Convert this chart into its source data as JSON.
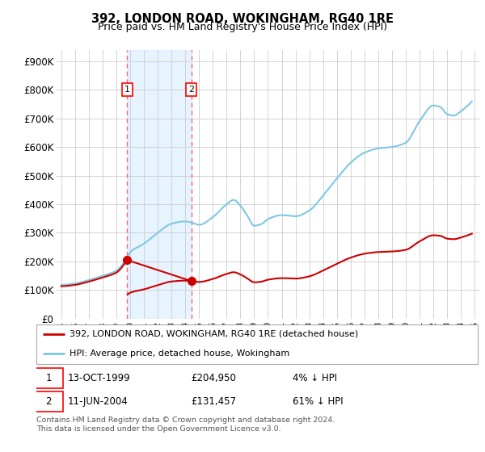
{
  "title": "392, LONDON ROAD, WOKINGHAM, RG40 1RE",
  "subtitle": "Price paid vs. HM Land Registry's House Price Index (HPI)",
  "footer": "Contains HM Land Registry data © Crown copyright and database right 2024.\nThis data is licensed under the Open Government Licence v3.0.",
  "legend_line1": "392, LONDON ROAD, WOKINGHAM, RG40 1RE (detached house)",
  "legend_line2": "HPI: Average price, detached house, Wokingham",
  "sale1_date": "13-OCT-1999",
  "sale1_price": "£204,950",
  "sale1_note": "4% ↓ HPI",
  "sale2_date": "11-JUN-2004",
  "sale2_price": "£131,457",
  "sale2_note": "61% ↓ HPI",
  "sale1_x": 1999.78,
  "sale1_y": 204950,
  "sale2_x": 2004.44,
  "sale2_y": 131457,
  "hpi_line_color": "#7ec8e3",
  "property_color": "#cc0000",
  "vline_color": "#ff6666",
  "grid_color": "#cccccc",
  "shade_color": "#ddeeff",
  "ylim": [
    0,
    940000
  ],
  "xlim": [
    1994.6,
    2025.4
  ],
  "yticks": [
    0,
    100000,
    200000,
    300000,
    400000,
    500000,
    600000,
    700000,
    800000,
    900000
  ],
  "ytick_labels": [
    "£0",
    "£100K",
    "£200K",
    "£300K",
    "£400K",
    "£500K",
    "£600K",
    "£700K",
    "£800K",
    "£900K"
  ],
  "xticks": [
    1995,
    1996,
    1997,
    1998,
    1999,
    2000,
    2001,
    2002,
    2003,
    2004,
    2005,
    2006,
    2007,
    2008,
    2009,
    2010,
    2011,
    2012,
    2013,
    2014,
    2015,
    2016,
    2017,
    2018,
    2019,
    2020,
    2021,
    2022,
    2023,
    2024,
    2025
  ],
  "hpi_knots_x": [
    1995,
    1996,
    1997,
    1998,
    1999,
    1999.78,
    2000,
    2001,
    2002,
    2003,
    2004,
    2004.44,
    2005,
    2006,
    2007,
    2007.5,
    2008,
    2008.5,
    2009,
    2009.5,
    2010,
    2011,
    2012,
    2013,
    2014,
    2015,
    2016,
    2017,
    2018,
    2019,
    2020,
    2021,
    2022,
    2022.5,
    2023,
    2023.5,
    2024,
    2024.5
  ],
  "hpi_knots_y": [
    118000,
    123000,
    135000,
    150000,
    168000,
    213490,
    232000,
    262000,
    300000,
    332000,
    340000,
    336000,
    328000,
    355000,
    400000,
    415000,
    395000,
    360000,
    325000,
    330000,
    348000,
    362000,
    358000,
    378000,
    430000,
    490000,
    545000,
    580000,
    595000,
    600000,
    615000,
    690000,
    745000,
    740000,
    715000,
    710000,
    725000,
    745000
  ]
}
